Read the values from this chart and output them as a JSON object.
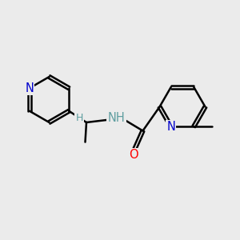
{
  "background_color": "#ebebeb",
  "bond_color": "#000000",
  "bond_width": 1.8,
  "atom_colors": {
    "N": "#0000cc",
    "O": "#ff0000",
    "H_label": "#5f9ea0",
    "C": "#000000"
  },
  "font_size_atom": 10.5,
  "font_size_H": 9.0,
  "figsize": [
    3.0,
    3.0
  ],
  "dpi": 100
}
